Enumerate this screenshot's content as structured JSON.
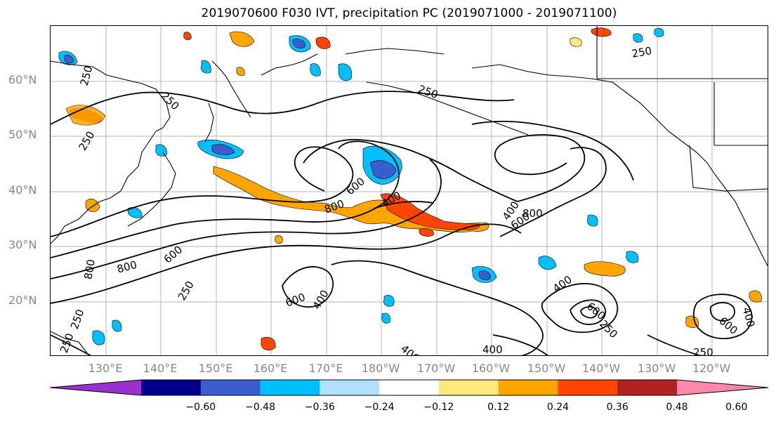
{
  "title": "2019070600 F030 IVT, precipitation PC (2019071000 - 2019071100)",
  "lat_labels": [
    "60°N",
    "50°N",
    "40°N",
    "30°N",
    "20°N"
  ],
  "lon_labels": [
    "130°E",
    "140°E",
    "150°E",
    "160°E",
    "170°E",
    "180°W",
    "170°W",
    "160°W",
    "150°W",
    "140°W",
    "130°W",
    "120°W"
  ],
  "colorbar": {
    "ticks": [
      "−0.60",
      "−0.48",
      "−0.36",
      "−0.24",
      "−0.12",
      "0.12",
      "0.24",
      "0.36",
      "0.48",
      "0.60"
    ],
    "colors": [
      "#9932cc",
      "#00008b",
      "#3a5fcd",
      "#00bfff",
      "#b0e2ff",
      "#ffffff",
      "#ffe97f",
      "#ffa500",
      "#ff4500",
      "#b22222",
      "#ff88aa"
    ]
  },
  "contour_labels": [
    {
      "text": "250"
    },
    {
      "text": "250"
    },
    {
      "text": "250"
    },
    {
      "text": "250"
    },
    {
      "text": "250"
    },
    {
      "text": "250"
    },
    {
      "text": "250"
    },
    {
      "text": "250"
    },
    {
      "text": "250"
    },
    {
      "text": "250"
    },
    {
      "text": "400"
    },
    {
      "text": "400"
    },
    {
      "text": "400"
    },
    {
      "text": "400"
    },
    {
      "text": "400"
    },
    {
      "text": "400"
    },
    {
      "text": "400"
    },
    {
      "text": "600"
    },
    {
      "text": "600"
    },
    {
      "text": "600"
    },
    {
      "text": "600"
    },
    {
      "text": "600"
    },
    {
      "text": "600"
    },
    {
      "text": "800"
    },
    {
      "text": "800"
    },
    {
      "text": "800"
    },
    {
      "text": "800"
    }
  ]
}
